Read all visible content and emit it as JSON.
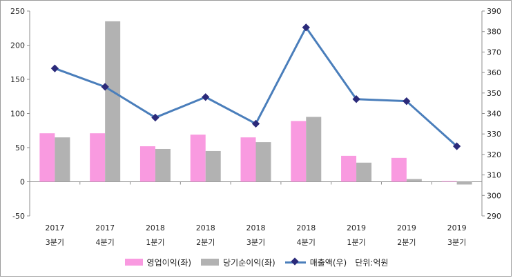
{
  "chart_data": {
    "type": "bar+line",
    "categories": [
      [
        "2017",
        "3분기"
      ],
      [
        "2017",
        "4분기"
      ],
      [
        "2018",
        "1분기"
      ],
      [
        "2018",
        "2분기"
      ],
      [
        "2018",
        "3분기"
      ],
      [
        "2018",
        "4분기"
      ],
      [
        "2019",
        "1분기"
      ],
      [
        "2019",
        "2분기"
      ],
      [
        "2019",
        "3분기"
      ]
    ],
    "series": [
      {
        "name": "영업이익(좌)",
        "type": "bar",
        "axis": "left",
        "color": "#f99ae0",
        "values": [
          71,
          71,
          52,
          69,
          65,
          89,
          38,
          35,
          1
        ]
      },
      {
        "name": "당기순이익(좌)",
        "type": "bar",
        "axis": "left",
        "color": "#b2b2b2",
        "values": [
          65,
          235,
          48,
          45,
          58,
          95,
          28,
          4,
          -4
        ]
      },
      {
        "name": "매출액(우)",
        "type": "line",
        "axis": "right",
        "color": "#4a7ebb",
        "marker_color": "#2b2a7a",
        "values": [
          362,
          353,
          338,
          348,
          335,
          382,
          347,
          346,
          324
        ]
      }
    ],
    "yleft": {
      "min": -50,
      "max": 250,
      "step": 50,
      "ticks": [
        "-50",
        "0",
        "50",
        "100",
        "150",
        "200",
        "250"
      ]
    },
    "yright": {
      "min": 290,
      "max": 390,
      "step": 10,
      "ticks": [
        "290",
        "300",
        "310",
        "320",
        "330",
        "340",
        "350",
        "360",
        "370",
        "380",
        "390"
      ]
    },
    "unit_note": "단위:억원",
    "legend_position": "bottom",
    "grid": false
  }
}
